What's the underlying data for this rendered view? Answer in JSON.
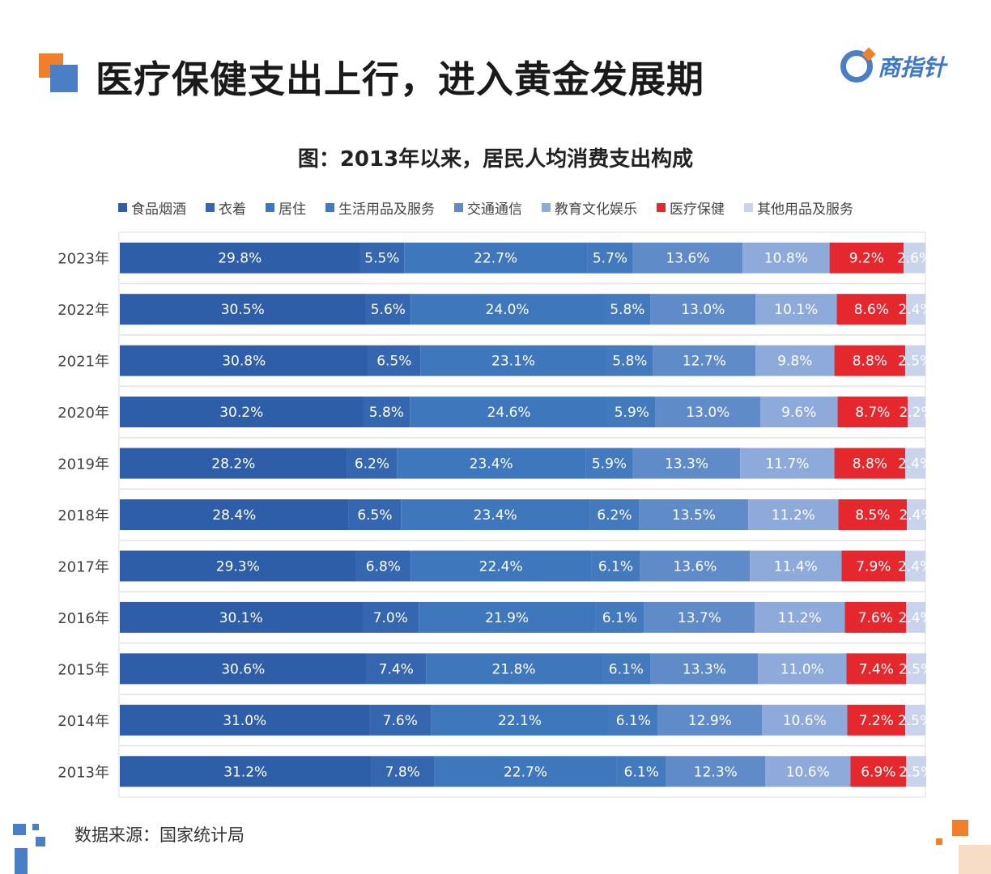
{
  "header": {
    "title": "医疗保健支出上行，进入黄金发展期",
    "logo_text": "商指针"
  },
  "footer": {
    "source": "数据来源：国家统计局"
  },
  "chart_data": {
    "type": "bar",
    "orientation": "horizontal",
    "stacked": true,
    "title": "图：2013年以来，居民人均消费支出构成",
    "legend_position": "top",
    "categories": [
      "2023年",
      "2022年",
      "2021年",
      "2020年",
      "2019年",
      "2018年",
      "2017年",
      "2016年",
      "2015年",
      "2014年",
      "2013年"
    ],
    "series": [
      {
        "name": "食品烟酒",
        "color": "#2f5ea8",
        "values": [
          29.8,
          30.5,
          30.8,
          30.2,
          28.2,
          28.4,
          29.3,
          30.1,
          30.6,
          31.0,
          31.2
        ]
      },
      {
        "name": "衣着",
        "color": "#3566b0",
        "values": [
          5.5,
          5.6,
          6.5,
          5.8,
          6.2,
          6.5,
          6.8,
          7.0,
          7.4,
          7.6,
          7.8
        ]
      },
      {
        "name": "居住",
        "color": "#3f77bd",
        "values": [
          22.7,
          24.0,
          23.1,
          24.6,
          23.4,
          23.4,
          22.4,
          21.9,
          21.8,
          22.1,
          22.7
        ]
      },
      {
        "name": "生活用品及服务",
        "color": "#4379bd",
        "values": [
          5.7,
          5.8,
          5.8,
          5.9,
          5.9,
          6.2,
          6.1,
          6.1,
          6.1,
          6.1,
          6.1
        ]
      },
      {
        "name": "交通通信",
        "color": "#5f8cc8",
        "values": [
          13.6,
          13.0,
          12.7,
          13.0,
          13.3,
          13.5,
          13.6,
          13.7,
          13.3,
          12.9,
          12.3
        ]
      },
      {
        "name": "教育文化娱乐",
        "color": "#8eaadb",
        "values": [
          10.8,
          10.1,
          9.8,
          9.6,
          11.7,
          11.2,
          11.4,
          11.2,
          11.0,
          10.6,
          10.6
        ]
      },
      {
        "name": "医疗保健",
        "color": "#e5282e",
        "values": [
          9.2,
          8.6,
          8.8,
          8.7,
          8.8,
          8.5,
          7.9,
          7.6,
          7.4,
          7.2,
          6.9
        ]
      },
      {
        "name": "其他用品及服务",
        "color": "#c9d4ec",
        "values": [
          2.6,
          2.4,
          2.5,
          2.2,
          2.4,
          2.4,
          2.4,
          2.4,
          2.5,
          2.5,
          2.5
        ]
      }
    ],
    "unit": "%",
    "xlim": [
      0,
      100
    ]
  }
}
